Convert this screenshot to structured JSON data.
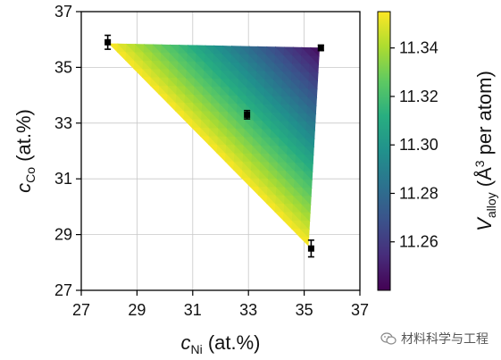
{
  "chart_data": {
    "type": "scatter",
    "xlabel": {
      "var": "c",
      "sub": "Ni",
      "unit": "(at.%)"
    },
    "ylabel": {
      "var": "c",
      "sub": "Co",
      "unit": "(at.%)"
    },
    "xlim": [
      27,
      37
    ],
    "ylim": [
      27,
      37
    ],
    "xticks": [
      27,
      29,
      31,
      33,
      35,
      37
    ],
    "yticks": [
      27,
      29,
      31,
      33,
      35,
      37
    ],
    "grid": true,
    "points": [
      {
        "x": 27.95,
        "y": 35.9,
        "yerr": 0.25,
        "xerr": 0.1
      },
      {
        "x": 35.6,
        "y": 35.7,
        "yerr": 0.1,
        "xerr": 0.1
      },
      {
        "x": 32.95,
        "y": 33.3,
        "yerr": 0.15,
        "xerr": 0.05
      },
      {
        "x": 35.25,
        "y": 28.5,
        "yerr": 0.3,
        "xerr": 0.1
      }
    ],
    "shaded_region": {
      "type": "triangle",
      "vertices": [
        {
          "x": 28.0,
          "y": 35.85
        },
        {
          "x": 35.55,
          "y": 35.7
        },
        {
          "x": 35.15,
          "y": 28.6
        }
      ],
      "values": [
        11.355,
        11.243,
        11.355
      ],
      "colormap": "viridis"
    },
    "colorbar": {
      "label": {
        "var": "V",
        "sub": "alloy",
        "unit_pre": "(Å",
        "sup": "3",
        "unit_post": " per atom)"
      },
      "range": [
        11.24,
        11.355
      ],
      "ticks": [
        "11.26",
        "11.28",
        "11.30",
        "11.32",
        "11.34"
      ],
      "tick_values": [
        11.26,
        11.28,
        11.3,
        11.32,
        11.34
      ]
    }
  },
  "watermark": {
    "text": "材料科学与工程",
    "icon": "wechat-icon"
  }
}
